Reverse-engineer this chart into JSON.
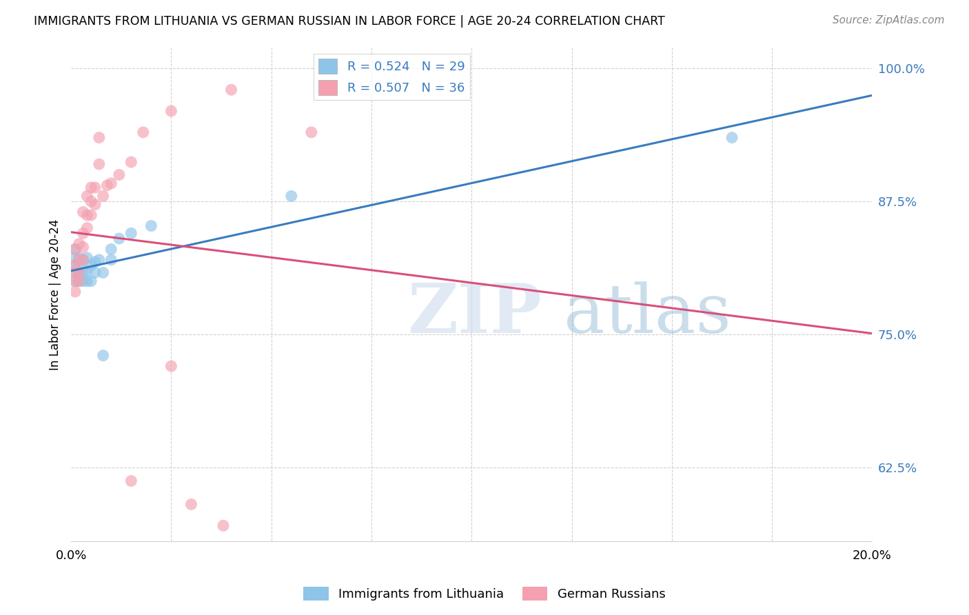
{
  "title": "IMMIGRANTS FROM LITHUANIA VS GERMAN RUSSIAN IN LABOR FORCE | AGE 20-24 CORRELATION CHART",
  "source": "Source: ZipAtlas.com",
  "ylabel": "In Labor Force | Age 20-24",
  "right_yticks": [
    62.5,
    75.0,
    87.5,
    100.0
  ],
  "xlim": [
    0.0,
    0.2
  ],
  "ylim": [
    0.555,
    1.02
  ],
  "blue_R": 0.524,
  "blue_N": 29,
  "pink_R": 0.507,
  "pink_N": 36,
  "blue_color": "#8ec4e8",
  "pink_color": "#f4a0b0",
  "line_blue": "#3a7bbf",
  "line_pink": "#d94f7a",
  "blue_scatter_x": [
    0.001,
    0.001,
    0.001,
    0.001,
    0.001,
    0.002,
    0.002,
    0.002,
    0.002,
    0.003,
    0.003,
    0.003,
    0.004,
    0.004,
    0.004,
    0.005,
    0.005,
    0.006,
    0.006,
    0.007,
    0.008,
    0.008,
    0.01,
    0.01,
    0.012,
    0.015,
    0.02,
    0.055,
    0.165
  ],
  "blue_scatter_y": [
    0.8,
    0.808,
    0.815,
    0.822,
    0.83,
    0.8,
    0.808,
    0.815,
    0.822,
    0.8,
    0.808,
    0.82,
    0.8,
    0.81,
    0.822,
    0.8,
    0.815,
    0.808,
    0.818,
    0.82,
    0.73,
    0.808,
    0.82,
    0.83,
    0.84,
    0.845,
    0.852,
    0.88,
    0.935
  ],
  "pink_scatter_x": [
    0.001,
    0.001,
    0.001,
    0.001,
    0.001,
    0.002,
    0.002,
    0.002,
    0.002,
    0.003,
    0.003,
    0.003,
    0.003,
    0.004,
    0.004,
    0.004,
    0.005,
    0.005,
    0.005,
    0.006,
    0.006,
    0.007,
    0.007,
    0.008,
    0.009,
    0.01,
    0.012,
    0.015,
    0.018,
    0.025,
    0.04,
    0.015,
    0.025,
    0.06,
    0.03,
    0.038
  ],
  "pink_scatter_y": [
    0.79,
    0.8,
    0.808,
    0.815,
    0.83,
    0.8,
    0.808,
    0.82,
    0.835,
    0.82,
    0.832,
    0.845,
    0.865,
    0.85,
    0.862,
    0.88,
    0.862,
    0.875,
    0.888,
    0.872,
    0.888,
    0.91,
    0.935,
    0.88,
    0.89,
    0.892,
    0.9,
    0.912,
    0.94,
    0.96,
    0.98,
    0.612,
    0.72,
    0.94,
    0.59,
    0.57
  ],
  "watermark_zip": "ZIP",
  "watermark_atlas": "atlas"
}
